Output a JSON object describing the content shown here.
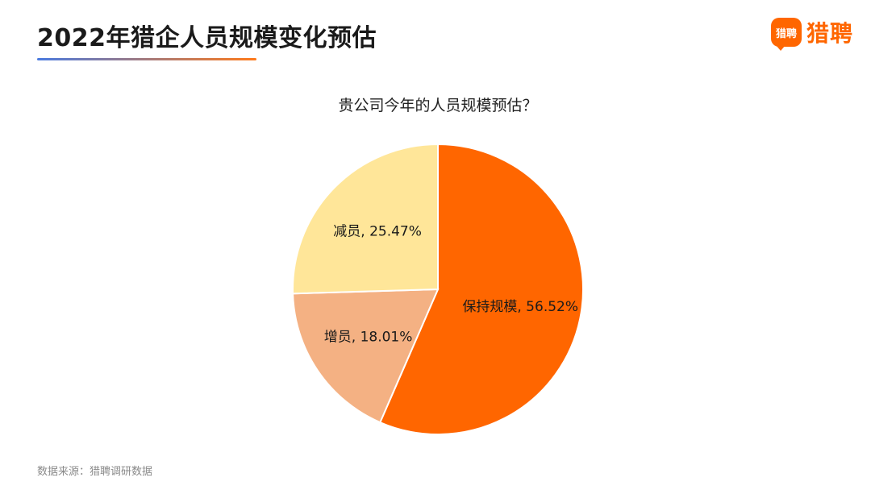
{
  "header": {
    "title": "2022年猎企人员规模变化预估"
  },
  "logo": {
    "badge_text": "猎聘",
    "text": "猎聘",
    "color": "#FF6600"
  },
  "colors": {
    "underline_start": "#4A7BE0",
    "underline_end": "#FF7A1A",
    "slice_border": "#ffffff"
  },
  "chart_data": {
    "type": "pie",
    "title": "贵公司今年的人员规模预估？",
    "start_angle_deg": 0,
    "direction": "clockwise",
    "slices": [
      {
        "label": "保持规模",
        "value": 56.52,
        "display": "保持规模, 56.52%",
        "color": "#FF6600"
      },
      {
        "label": "增员",
        "value": 18.01,
        "display": "增员, 18.01%",
        "color": "#F4B183"
      },
      {
        "label": "减员",
        "value": 25.47,
        "display": "减员, 25.47%",
        "color": "#FFE699"
      }
    ]
  },
  "footer": {
    "source": "数据来源：猎聘调研数据"
  }
}
